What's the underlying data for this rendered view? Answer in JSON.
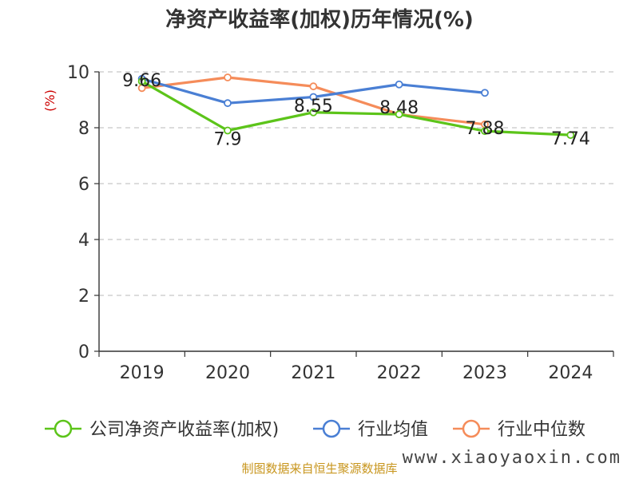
{
  "chart_data": {
    "type": "line",
    "title": "净资产收益率(加权)历年情况(%)",
    "ylabel": "(%)",
    "ylim": [
      0,
      10
    ],
    "yticks": [
      0,
      2,
      4,
      6,
      8,
      10
    ],
    "grid": true,
    "legend_position": "bottom",
    "categories": [
      "2019",
      "2020",
      "2021",
      "2022",
      "2023",
      "2024"
    ],
    "series": [
      {
        "name": "公司净资产收益率(加权)",
        "color": "#5cc41a",
        "values": [
          9.66,
          7.9,
          8.55,
          8.48,
          7.88,
          7.74
        ],
        "labels": [
          "9.66",
          "7.9",
          "8.55",
          "8.48",
          "7.88",
          "7.74"
        ]
      },
      {
        "name": "行业均值",
        "color": "#4a7fd4",
        "values": [
          9.75,
          8.88,
          9.1,
          9.55,
          9.25,
          null
        ]
      },
      {
        "name": "行业中位数",
        "color": "#f58c5a",
        "values": [
          9.42,
          9.8,
          9.48,
          8.48,
          8.12,
          null
        ]
      }
    ]
  },
  "footer": {
    "source": "制图数据来自恒生聚源数据库",
    "watermark": "www.xiaoyaoxin.com"
  }
}
